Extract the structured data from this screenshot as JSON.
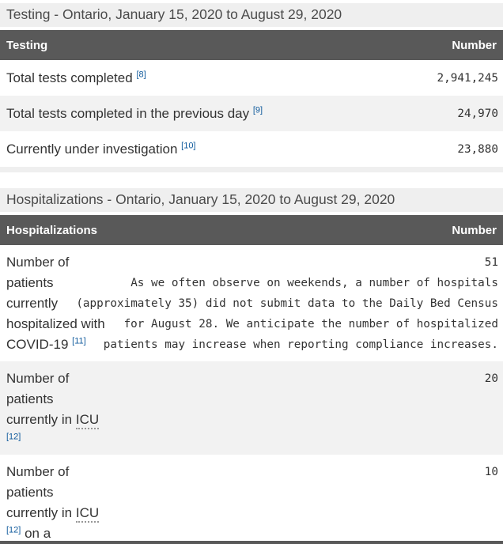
{
  "testing_section": {
    "heading": "Testing - Ontario, January 15, 2020 to August 29, 2020",
    "table": {
      "col_label": "Testing",
      "col_value": "Number",
      "rows": [
        {
          "label": "Total tests completed",
          "footnote": "[8]",
          "value": "2,941,245"
        },
        {
          "label": "Total tests completed in the previous day",
          "footnote": "[9]",
          "value": "24,970"
        },
        {
          "label": "Currently under investigation",
          "footnote": "[10]",
          "value": "23,880"
        }
      ]
    }
  },
  "hospitalizations_section": {
    "heading": "Hospitalizations - Ontario, January 15, 2020 to August 29, 2020",
    "table": {
      "col_label": "Hospitalizations",
      "col_value": "Number",
      "rows": [
        {
          "label": "Number of patients currently hospitalized with COVID-19",
          "footnote": "[11]",
          "value": "51",
          "note_lines": [
            "As we often observe on weekends, a number of hospitals",
            "(approximately 35) did not submit data to the Daily Bed Census",
            "for August 28. We anticipate the number of hospitalized",
            "patients may increase when reporting compliance increases."
          ]
        },
        {
          "label_prefix": "Number of patients currently in",
          "abbr": "ICU",
          "footnote": "[12]",
          "label_suffix": "",
          "value": "20"
        },
        {
          "label_prefix": "Number of patients currently in",
          "abbr": "ICU",
          "footnote": "[12]",
          "label_suffix": "on a",
          "value": "10"
        }
      ]
    }
  },
  "colors": {
    "table_header_bg": "#595959",
    "heading_bar_bg": "#efefef",
    "alt_row_bg": "#f2f2f2",
    "footnote_link": "#0f5a9c",
    "text": "#333333"
  }
}
